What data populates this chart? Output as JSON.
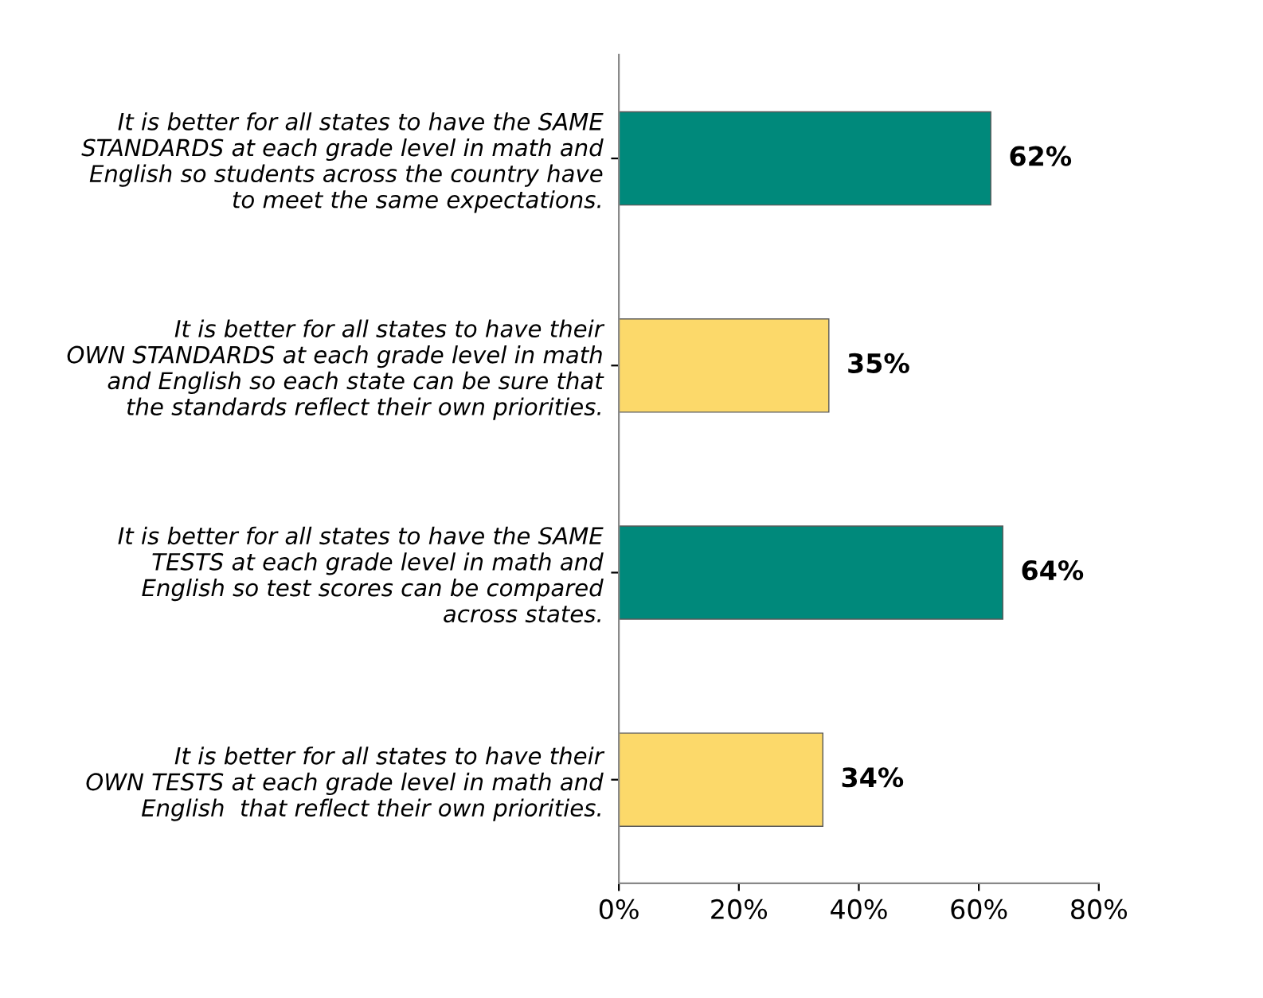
{
  "chart_data": {
    "type": "bar",
    "orientation": "horizontal",
    "categories": [
      "It is better for all states to have the SAME STANDARDS at each grade level in math and English so students across the country have to meet the same expectations.",
      "It is better for all states to have their OWN STANDARDS at each grade level in math and English so each state can be sure that the standards reflect their own priorities.",
      "It is better for all states to have the SAME TESTS at each grade level in math and English so test scores can be compared across states.",
      "It is better for all states to have their OWN TESTS at each grade level in math and English  that reflect their own priorities."
    ],
    "values": [
      62,
      35,
      64,
      34
    ],
    "colors": [
      "#00897b",
      "#fcd96a",
      "#00897b",
      "#fcd96a"
    ],
    "value_labels": [
      "62%",
      "35%",
      "64%",
      "34%"
    ],
    "xlim": [
      0,
      80
    ],
    "xticks": [
      {
        "value": 0,
        "label": "0%"
      },
      {
        "value": 20,
        "label": "20%"
      },
      {
        "value": 40,
        "label": "40%"
      },
      {
        "value": 60,
        "label": "60%"
      },
      {
        "value": 80,
        "label": "80%"
      }
    ],
    "grid": false,
    "legend": false
  }
}
